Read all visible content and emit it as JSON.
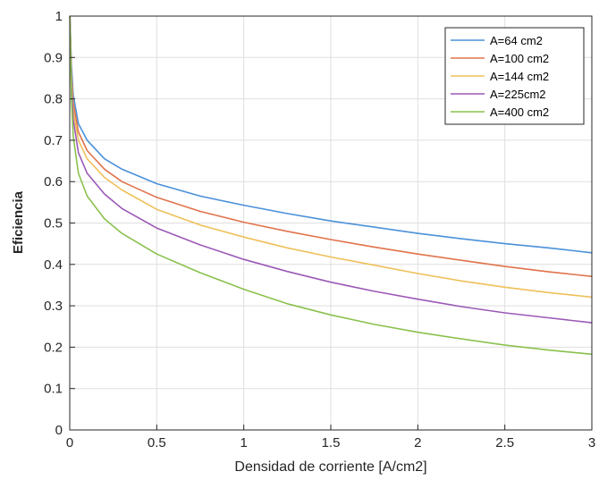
{
  "chart_data": {
    "type": "line",
    "title": "",
    "xlabel": "Densidad de corriente [A/cm2]",
    "ylabel": "Eficiencia",
    "xlim": [
      0,
      3
    ],
    "ylim": [
      0,
      1
    ],
    "grid": true,
    "legend_position": "top-right",
    "x": [
      0.001,
      0.01,
      0.02,
      0.05,
      0.1,
      0.2,
      0.3,
      0.5,
      0.75,
      1.0,
      1.25,
      1.5,
      1.75,
      2.0,
      2.25,
      2.5,
      2.75,
      3.0
    ],
    "series": [
      {
        "name": "A=64 cm2",
        "color": "#4a90d9",
        "values": [
          1.0,
          0.88,
          0.81,
          0.74,
          0.7,
          0.655,
          0.63,
          0.595,
          0.565,
          0.543,
          0.523,
          0.505,
          0.49,
          0.475,
          0.462,
          0.45,
          0.44,
          0.428
        ]
      },
      {
        "name": "A=100 cm2",
        "color": "#e0734b",
        "values": [
          1.0,
          0.86,
          0.79,
          0.72,
          0.675,
          0.63,
          0.6,
          0.562,
          0.528,
          0.502,
          0.48,
          0.46,
          0.442,
          0.425,
          0.41,
          0.395,
          0.382,
          0.371
        ]
      },
      {
        "name": "A=144 cm2",
        "color": "#efc05a",
        "values": [
          1.0,
          0.85,
          0.77,
          0.7,
          0.655,
          0.61,
          0.58,
          0.533,
          0.495,
          0.466,
          0.44,
          0.418,
          0.398,
          0.378,
          0.36,
          0.345,
          0.332,
          0.321
        ]
      },
      {
        "name": "A=225cm2",
        "color": "#9b59b6",
        "values": [
          1.0,
          0.83,
          0.75,
          0.67,
          0.62,
          0.57,
          0.535,
          0.488,
          0.447,
          0.412,
          0.383,
          0.357,
          0.335,
          0.316,
          0.298,
          0.283,
          0.271,
          0.259
        ]
      },
      {
        "name": "A=400 cm2",
        "color": "#8ac14d",
        "values": [
          1.0,
          0.8,
          0.71,
          0.62,
          0.565,
          0.51,
          0.475,
          0.425,
          0.38,
          0.34,
          0.305,
          0.278,
          0.255,
          0.236,
          0.22,
          0.205,
          0.193,
          0.183
        ]
      }
    ],
    "x_ticks": [
      "0",
      "0.5",
      "1",
      "1.5",
      "2",
      "2.5",
      "3"
    ],
    "y_ticks": [
      "0",
      "0.1",
      "0.2",
      "0.3",
      "0.4",
      "0.5",
      "0.6",
      "0.7",
      "0.8",
      "0.9",
      "1"
    ]
  }
}
